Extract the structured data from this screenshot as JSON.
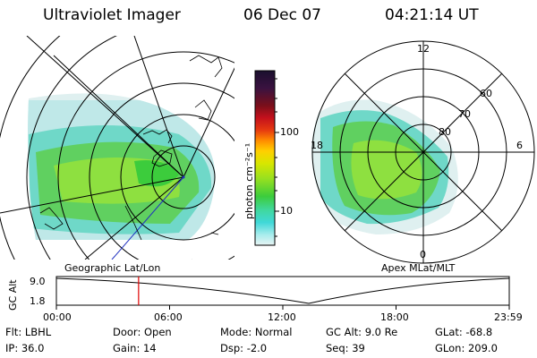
{
  "header": {
    "title": "Ultraviolet Imager",
    "date": "06 Dec 07",
    "time": "04:21:14 UT"
  },
  "geo_panel": {
    "label": "Geographic Lat/Lon"
  },
  "colorbar": {
    "unit_label": "photon cm⁻²s⁻¹",
    "ticks": [
      "100",
      "10"
    ],
    "scale": "log",
    "colors": [
      "#1a0f2e",
      "#3a1240",
      "#7a0f1a",
      "#c4101c",
      "#e63a10",
      "#ff8c00",
      "#ffcf00",
      "#d8e600",
      "#96e020",
      "#3ccc3c",
      "#40d8a0",
      "#40d8d8",
      "#a8ecec",
      "#e8f4f4"
    ]
  },
  "apex_panel": {
    "label": "Apex MLat/MLT",
    "mlt_labels": [
      "12",
      "18",
      "6",
      "0"
    ],
    "mlat_labels": [
      "60",
      "70",
      "80"
    ]
  },
  "timeline": {
    "y_label": "GC Alt",
    "y_ticks": [
      "9.0",
      "1.8"
    ],
    "x_ticks": [
      "00:00",
      "06:00",
      "12:00",
      "18:00",
      "23:59"
    ],
    "marker_time": "04:21:14",
    "marker_color": "#e00000"
  },
  "info": {
    "row1": [
      {
        "key": "Flt:",
        "value": "LBHL"
      },
      {
        "key": "Door:",
        "value": "Open"
      },
      {
        "key": "Mode:",
        "value": "Normal"
      },
      {
        "key": "GC Alt:",
        "value": "9.0 Re"
      },
      {
        "key": "GLat:",
        "value": "-68.8"
      }
    ],
    "row2": [
      {
        "key": "IP:",
        "value": "36.0"
      },
      {
        "key": "Gain:",
        "value": "14"
      },
      {
        "key": "Dsp:",
        "value": "-2.0"
      },
      {
        "key": "Seq:",
        "value": "39"
      },
      {
        "key": "GLon:",
        "value": "209.0"
      }
    ]
  }
}
